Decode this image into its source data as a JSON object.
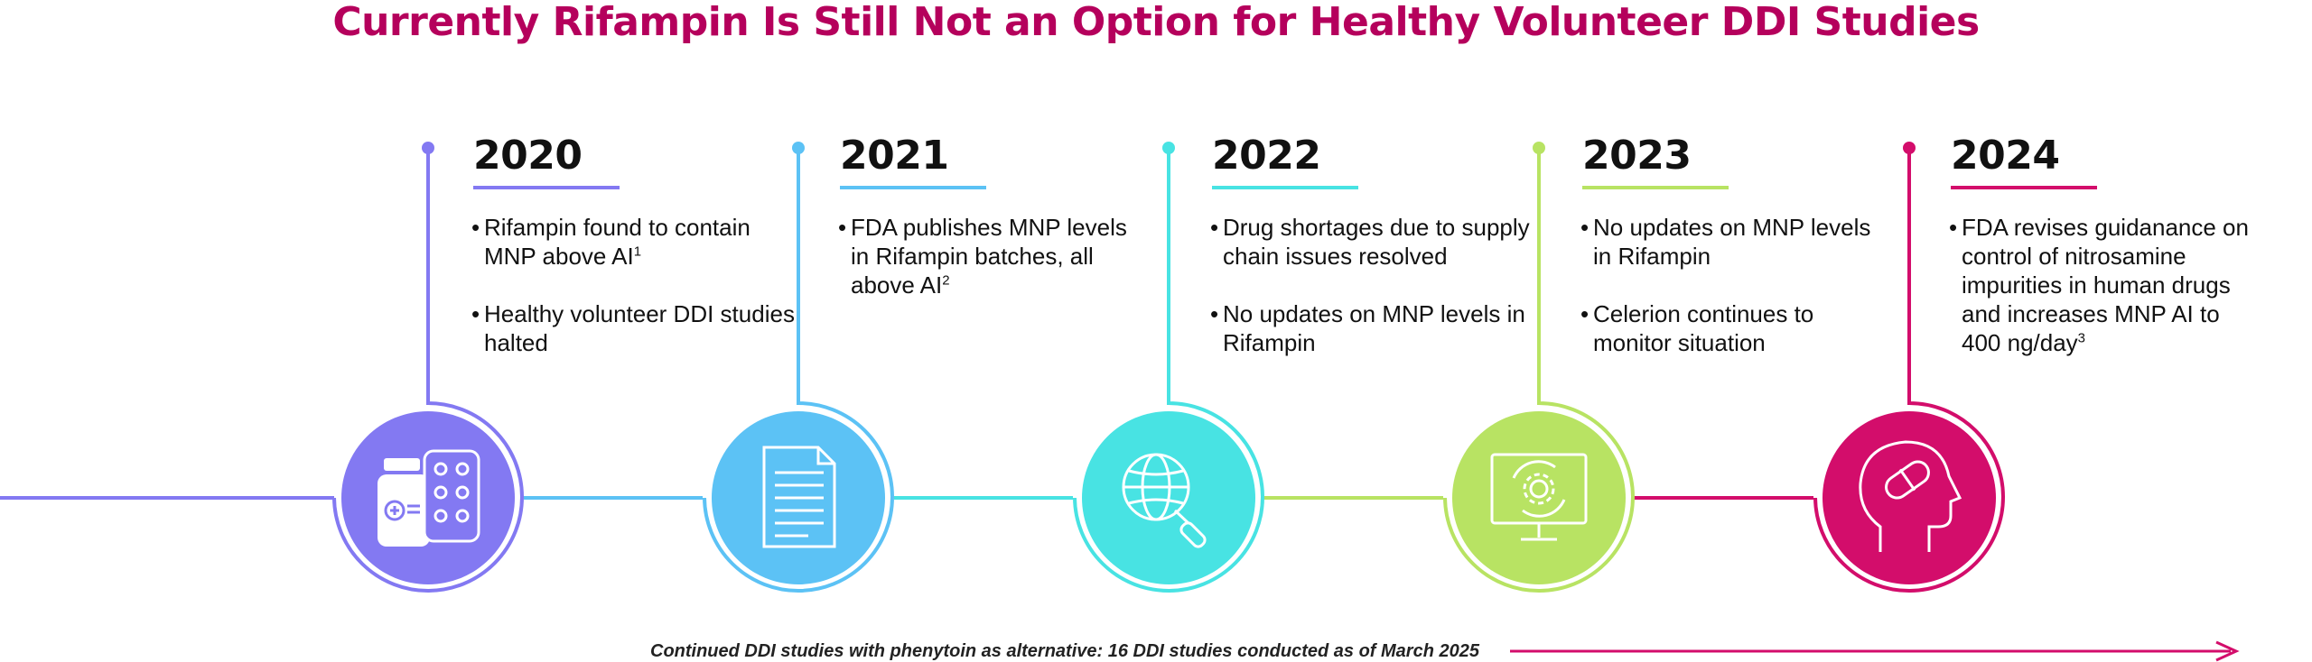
{
  "title": "Currently Rifampin Is Still Not an Option for Healthy Volunteer DDI Studies",
  "milestones": [
    {
      "year": "2020",
      "color": "#8379f2",
      "icon": "medicine-bottle-blister-pack-icon",
      "bullets": [
        {
          "text": "Rifampin found to contain MNP above AI",
          "sup": "1"
        },
        {
          "text": "Healthy volunteer DDI studies halted",
          "sup": ""
        }
      ]
    },
    {
      "year": "2021",
      "color": "#5cc2f5",
      "icon": "document-icon",
      "bullets": [
        {
          "text": "FDA publishes MNP levels in Rifampin batches, all above AI",
          "sup": "2"
        }
      ]
    },
    {
      "year": "2022",
      "color": "#48e3e3",
      "icon": "globe-search-icon",
      "bullets": [
        {
          "text": "Drug shortages due to supply chain issues resolved",
          "sup": ""
        },
        {
          "text": "No updates on MNP levels in Rifampin",
          "sup": ""
        }
      ]
    },
    {
      "year": "2023",
      "color": "#b8e363",
      "icon": "monitor-gear-icon",
      "bullets": [
        {
          "text": "No updates on MNP levels in Rifampin",
          "sup": ""
        },
        {
          "text": "Celerion continues to monitor situation",
          "sup": ""
        }
      ]
    },
    {
      "year": "2024",
      "color": "#d30d6b",
      "icon": "head-pill-icon",
      "bullets": [
        {
          "text": "FDA revises guidanance on control of nitrosamine impurities in human drugs and increases MNP AI to 400 ng/day",
          "sup": "3"
        }
      ]
    }
  ],
  "footnote": {
    "text": "Continued DDI studies with phenytoin as alternative: 16 DDI studies conducted as of March 2025",
    "arrow_color": "#d30d6b"
  }
}
